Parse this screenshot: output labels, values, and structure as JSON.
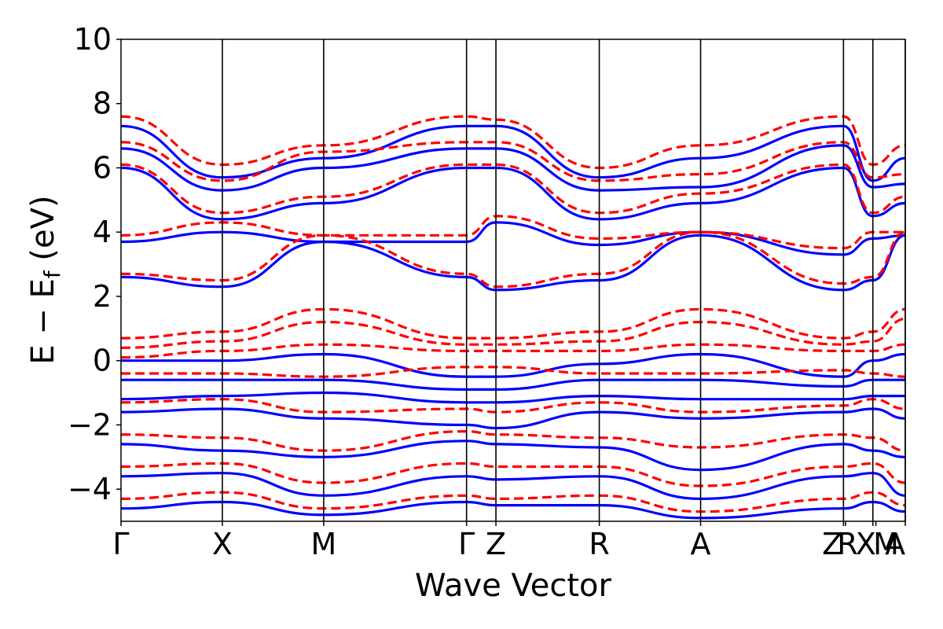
{
  "chart_data": {
    "type": "line",
    "xlabel": "Wave Vector",
    "ylabel": "E − E",
    "ylabel_subscript": "f",
    "ylabel_unit": " (eV)",
    "ylim": [
      -5,
      10
    ],
    "yticks": [
      -4,
      -2,
      0,
      2,
      4,
      6,
      8,
      10
    ],
    "ytick_labels": [
      "−4",
      "−2",
      "0",
      "2",
      "4",
      "6",
      "8",
      "10"
    ],
    "xlim": [
      0,
      7.74
    ],
    "kpoints": [
      {
        "label": "Γ",
        "x": 0.0
      },
      {
        "label": "X",
        "x": 1.0
      },
      {
        "label": "M",
        "x": 2.0
      },
      {
        "label": "Γ",
        "x": 3.41
      },
      {
        "label": "Z",
        "x": 3.7
      },
      {
        "label": "R",
        "x": 4.72
      },
      {
        "label": "A",
        "x": 5.72
      },
      {
        "label": "Z",
        "x": 7.13
      },
      {
        "label": "R",
        "x": 7.15
      },
      {
        "label": "X",
        "x": 7.42
      },
      {
        "label": "M",
        "x": 7.45
      },
      {
        "label": "A",
        "x": 7.74
      }
    ],
    "kpoint_labels_display": [
      "Γ",
      "X",
      "M",
      "Γ",
      "Z",
      "R",
      "A",
      "Z",
      "R",
      "X",
      "M",
      "A"
    ],
    "kpoint_vlines": [
      1.0,
      2.0,
      3.41,
      3.7,
      4.72,
      5.72,
      7.13,
      7.42,
      7.74
    ],
    "grid": false,
    "series": [
      {
        "style": "solid",
        "color": "#0000ff",
        "bands": [
          {
            "x": [
              0,
              1,
              2,
              3.41,
              3.7,
              4.72,
              5.72,
              7.13,
              7.42,
              7.74
            ],
            "y": [
              2.6,
              2.3,
              3.7,
              2.6,
              2.2,
              2.5,
              3.9,
              2.2,
              2.5,
              3.9
            ]
          },
          {
            "x": [
              0,
              1,
              2,
              3.41,
              3.7,
              4.72,
              5.72,
              7.13,
              7.42,
              7.74
            ],
            "y": [
              3.7,
              4.0,
              3.7,
              3.7,
              4.3,
              3.6,
              4.0,
              3.3,
              3.8,
              3.9
            ]
          },
          {
            "x": [
              0,
              1,
              2,
              3.41,
              3.7,
              4.72,
              5.72,
              7.13,
              7.42,
              7.74
            ],
            "y": [
              6.0,
              4.4,
              4.9,
              6.0,
              6.0,
              4.4,
              4.9,
              6.0,
              4.5,
              4.9
            ]
          },
          {
            "x": [
              0,
              1,
              2,
              3.41,
              3.7,
              4.72,
              5.72,
              7.13,
              7.42,
              7.74
            ],
            "y": [
              6.6,
              5.3,
              6.0,
              6.6,
              6.6,
              5.3,
              5.4,
              6.7,
              5.4,
              5.5
            ]
          },
          {
            "x": [
              0,
              1,
              2,
              3.41,
              3.7,
              4.72,
              5.72,
              7.13,
              7.42,
              7.74
            ],
            "y": [
              7.3,
              5.7,
              6.3,
              7.3,
              7.3,
              5.7,
              6.3,
              7.3,
              5.6,
              6.3
            ]
          },
          {
            "x": [
              0,
              1,
              2,
              3.41,
              3.7,
              4.72,
              5.72,
              7.13,
              7.42,
              7.74
            ],
            "y": [
              0.0,
              0.0,
              0.2,
              -0.5,
              -0.5,
              -0.1,
              0.2,
              -0.5,
              0.0,
              0.2
            ]
          },
          {
            "x": [
              0,
              1,
              2,
              3.41,
              3.7,
              4.72,
              5.72,
              7.13,
              7.42,
              7.74
            ],
            "y": [
              -0.6,
              -0.6,
              -0.6,
              -0.9,
              -0.9,
              -0.6,
              -0.6,
              -0.8,
              -0.6,
              -0.6
            ]
          },
          {
            "x": [
              0,
              1,
              2,
              3.41,
              3.7,
              4.72,
              5.72,
              7.13,
              7.42,
              7.74
            ],
            "y": [
              -1.2,
              -1.1,
              -1.0,
              -1.3,
              -1.3,
              -1.1,
              -1.2,
              -1.2,
              -1.1,
              -1.1
            ]
          },
          {
            "x": [
              0,
              1,
              2,
              3.41,
              3.7,
              4.72,
              5.72,
              7.13,
              7.42,
              7.74
            ],
            "y": [
              -1.6,
              -1.5,
              -1.8,
              -2.0,
              -2.1,
              -1.6,
              -1.8,
              -1.6,
              -1.5,
              -1.8
            ]
          },
          {
            "x": [
              0,
              1,
              2,
              3.41,
              3.7,
              4.72,
              5.72,
              7.13,
              7.42,
              7.74
            ],
            "y": [
              -2.6,
              -2.8,
              -3.0,
              -2.5,
              -2.6,
              -2.7,
              -3.4,
              -2.6,
              -2.8,
              -3.0
            ]
          },
          {
            "x": [
              0,
              1,
              2,
              3.41,
              3.7,
              4.72,
              5.72,
              7.13,
              7.42,
              7.74
            ],
            "y": [
              -3.6,
              -3.5,
              -4.2,
              -3.6,
              -3.7,
              -3.6,
              -4.3,
              -3.6,
              -3.5,
              -4.2
            ]
          },
          {
            "x": [
              0,
              1,
              2,
              3.41,
              3.7,
              4.72,
              5.72,
              7.13,
              7.42,
              7.74
            ],
            "y": [
              -4.6,
              -4.4,
              -4.8,
              -4.4,
              -4.5,
              -4.5,
              -4.9,
              -4.6,
              -4.4,
              -4.7
            ]
          }
        ]
      },
      {
        "style": "dashed",
        "color": "#ff0000",
        "bands": [
          {
            "x": [
              0,
              1,
              2,
              3.41,
              3.7,
              4.72,
              5.72,
              7.13,
              7.42,
              7.74
            ],
            "y": [
              2.7,
              2.5,
              3.9,
              2.7,
              2.3,
              2.7,
              4.0,
              2.4,
              2.6,
              4.0
            ]
          },
          {
            "x": [
              0,
              1,
              2,
              3.41,
              3.7,
              4.72,
              5.72,
              7.13,
              7.42,
              7.74
            ],
            "y": [
              3.9,
              4.3,
              3.9,
              3.9,
              4.5,
              3.8,
              4.0,
              3.5,
              4.0,
              4.0
            ]
          },
          {
            "x": [
              0,
              1,
              2,
              3.41,
              3.7,
              4.72,
              5.72,
              7.13,
              7.42,
              7.74
            ],
            "y": [
              6.1,
              4.6,
              5.1,
              6.1,
              6.1,
              4.6,
              5.2,
              6.1,
              4.6,
              5.1
            ]
          },
          {
            "x": [
              0,
              1,
              2,
              3.41,
              3.7,
              4.72,
              5.72,
              7.13,
              7.42,
              7.74
            ],
            "y": [
              6.8,
              5.6,
              6.5,
              6.8,
              6.8,
              5.6,
              5.8,
              6.8,
              5.7,
              5.8
            ]
          },
          {
            "x": [
              0,
              1,
              2,
              3.41,
              3.7,
              4.72,
              5.72,
              7.13,
              7.42,
              7.74
            ],
            "y": [
              7.6,
              6.1,
              6.7,
              7.6,
              7.5,
              6.0,
              6.7,
              7.6,
              6.1,
              6.7
            ]
          },
          {
            "x": [
              0,
              1,
              2,
              3.41,
              3.7,
              4.72,
              5.72,
              7.13,
              7.42,
              7.74
            ],
            "y": [
              0.7,
              0.9,
              1.6,
              0.7,
              0.7,
              0.9,
              1.6,
              0.7,
              0.9,
              1.6
            ]
          },
          {
            "x": [
              0,
              1,
              2,
              3.41,
              3.7,
              4.72,
              5.72,
              7.13,
              7.42,
              7.74
            ],
            "y": [
              0.4,
              0.6,
              1.2,
              0.5,
              0.5,
              0.6,
              1.2,
              0.5,
              0.6,
              1.3
            ]
          },
          {
            "x": [
              0,
              1,
              2,
              3.41,
              3.7,
              4.72,
              5.72,
              7.13,
              7.42,
              7.74
            ],
            "y": [
              0.1,
              0.3,
              0.5,
              0.3,
              0.3,
              0.3,
              0.5,
              0.3,
              0.3,
              0.5
            ]
          },
          {
            "x": [
              0,
              1,
              2,
              3.41,
              3.7,
              4.72,
              5.72,
              7.13,
              7.42,
              7.74
            ],
            "y": [
              -0.4,
              -0.4,
              -0.5,
              -0.2,
              -0.2,
              -0.4,
              -0.4,
              -0.3,
              -0.4,
              -0.5
            ]
          },
          {
            "x": [
              0,
              1,
              2,
              3.41,
              3.7,
              4.72,
              5.72,
              7.13,
              7.42,
              7.74
            ],
            "y": [
              -1.3,
              -1.2,
              -1.6,
              -1.5,
              -1.6,
              -1.3,
              -1.6,
              -1.4,
              -1.2,
              -1.5
            ]
          },
          {
            "x": [
              0,
              1,
              2,
              3.41,
              3.7,
              4.72,
              5.72,
              7.13,
              7.42,
              7.74
            ],
            "y": [
              -2.3,
              -2.4,
              -2.8,
              -2.2,
              -2.3,
              -2.4,
              -2.7,
              -2.3,
              -2.4,
              -2.8
            ]
          },
          {
            "x": [
              0,
              1,
              2,
              3.41,
              3.7,
              4.72,
              5.72,
              7.13,
              7.42,
              7.74
            ],
            "y": [
              -3.3,
              -3.2,
              -3.8,
              -3.2,
              -3.3,
              -3.3,
              -3.9,
              -3.3,
              -3.2,
              -3.8
            ]
          },
          {
            "x": [
              0,
              1,
              2,
              3.41,
              3.7,
              4.72,
              5.72,
              7.13,
              7.42,
              7.74
            ],
            "y": [
              -4.3,
              -4.1,
              -4.6,
              -4.2,
              -4.3,
              -4.2,
              -4.7,
              -4.3,
              -4.1,
              -4.5
            ]
          }
        ]
      }
    ]
  }
}
